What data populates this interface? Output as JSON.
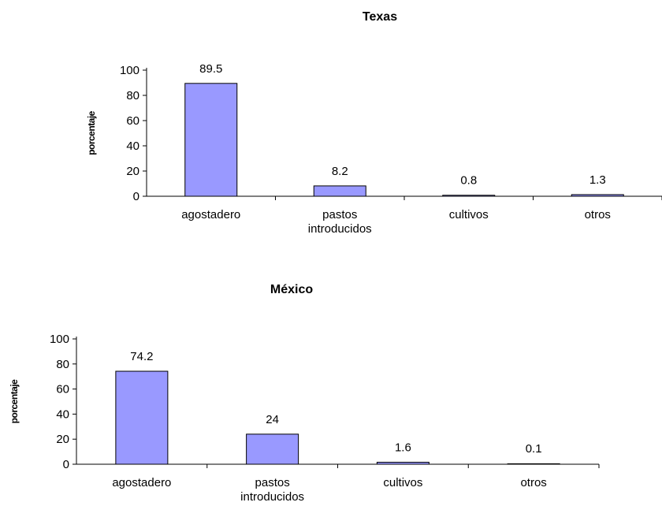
{
  "colors": {
    "bar_fill": "#9999ff",
    "axis": "#000000"
  },
  "chart_data": [
    {
      "type": "bar",
      "title": "Texas",
      "xlabel": "",
      "ylabel": "porcentaje",
      "ylim": [
        0,
        100
      ],
      "yticks": [
        0,
        20,
        40,
        60,
        80,
        100
      ],
      "grid": false,
      "categories": [
        [
          "agostadero"
        ],
        [
          "pastos",
          "introducidos"
        ],
        [
          "cultivos"
        ],
        [
          "otros"
        ]
      ],
      "values": [
        89.5,
        8.2,
        0.8,
        1.3
      ],
      "data_labels": [
        "89.5",
        "8.2",
        "0.8",
        "1.3"
      ]
    },
    {
      "type": "bar",
      "title": "México",
      "xlabel": "",
      "ylabel": "porcentaje",
      "ylim": [
        0,
        100
      ],
      "yticks": [
        0,
        20,
        40,
        60,
        80,
        100
      ],
      "grid": false,
      "categories": [
        [
          "agostadero"
        ],
        [
          "pastos",
          "introducidos"
        ],
        [
          "cultivos"
        ],
        [
          "otros"
        ]
      ],
      "values": [
        74.2,
        24,
        1.6,
        0.1
      ],
      "data_labels": [
        "74.2",
        "24",
        "1.6",
        "0.1"
      ]
    }
  ]
}
